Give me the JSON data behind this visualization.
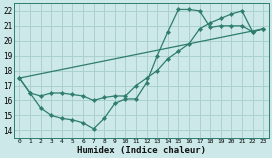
{
  "xlabel": "Humidex (Indice chaleur)",
  "bg_color": "#cce8e8",
  "line_color": "#2e7d6e",
  "grid_color": "#aad0d0",
  "xlim": [
    -0.5,
    23.5
  ],
  "ylim": [
    13.5,
    22.5
  ],
  "xticks": [
    0,
    1,
    2,
    3,
    4,
    5,
    6,
    7,
    8,
    9,
    10,
    11,
    12,
    13,
    14,
    15,
    16,
    17,
    18,
    19,
    20,
    21,
    22,
    23
  ],
  "yticks": [
    14,
    15,
    16,
    17,
    18,
    19,
    20,
    21,
    22
  ],
  "line1_x": [
    0,
    1,
    2,
    3,
    4,
    5,
    6,
    7,
    8,
    9,
    10,
    11,
    12,
    13,
    14,
    15,
    16,
    17,
    18,
    19,
    20,
    21,
    22,
    23
  ],
  "line1_y": [
    17.5,
    16.5,
    15.5,
    15.0,
    14.8,
    14.7,
    14.5,
    14.1,
    14.8,
    15.8,
    16.1,
    16.1,
    17.2,
    19.0,
    20.6,
    22.1,
    22.1,
    22.0,
    20.9,
    21.0,
    21.0,
    21.0,
    20.6,
    20.8
  ],
  "line2_x": [
    0,
    1,
    2,
    3,
    4,
    5,
    6,
    7,
    8,
    9,
    10,
    11,
    12,
    13,
    14,
    15,
    16,
    17,
    18,
    19,
    20,
    21,
    22,
    23
  ],
  "line2_y": [
    17.5,
    16.5,
    16.3,
    16.5,
    16.5,
    16.4,
    16.3,
    16.0,
    16.2,
    16.3,
    16.3,
    17.0,
    17.5,
    18.0,
    18.8,
    19.3,
    19.8,
    20.8,
    21.2,
    21.5,
    21.8,
    22.0,
    20.6,
    20.8
  ],
  "line3_x": [
    0,
    23
  ],
  "line3_y": [
    17.5,
    20.8
  ]
}
